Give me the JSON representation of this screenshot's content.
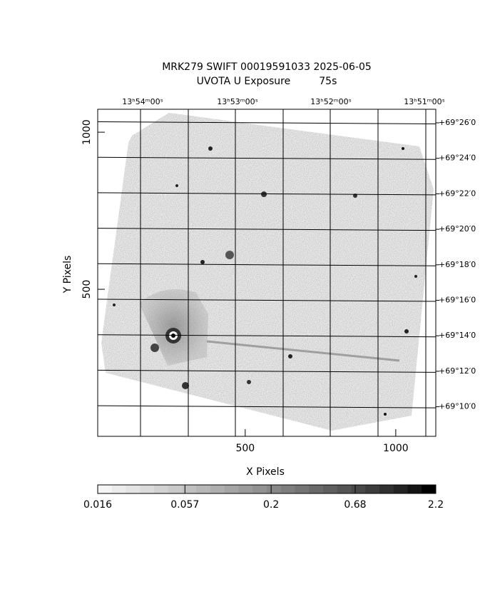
{
  "chart_data": {
    "type": "image",
    "title": "MRK279 SWIFT 00019591033 2025-06-05",
    "subtitle": "UVOTA U Exposure         75s",
    "xlabel": "X Pixels",
    "ylabel": "Y Pixels",
    "xlim": [
      10,
      1133
    ],
    "ylim": [
      32,
      1073
    ],
    "xticks": [
      500,
      1000
    ],
    "yticks": [
      500,
      1000
    ],
    "top_axis_labels": [
      "13ʰ54ᵐ00ˢ",
      "13ʰ53ᵐ00ˢ",
      "13ʰ52ᵐ00ˢ",
      "13ʰ51ᵐ00ˢ"
    ],
    "right_axis_labels": [
      "+69°26′0",
      "+69°24′0",
      "+69°22′0",
      "+69°20′0",
      "+69°18′0",
      "+69°16′0",
      "+69°14′0",
      "+69°12′0",
      "+69°10′0"
    ],
    "grid": true,
    "colorbar": {
      "log": true,
      "lim": [
        0.016,
        2.2
      ],
      "ticks": [
        0.016,
        0.057,
        0.2,
        0.68,
        2.2
      ]
    }
  }
}
